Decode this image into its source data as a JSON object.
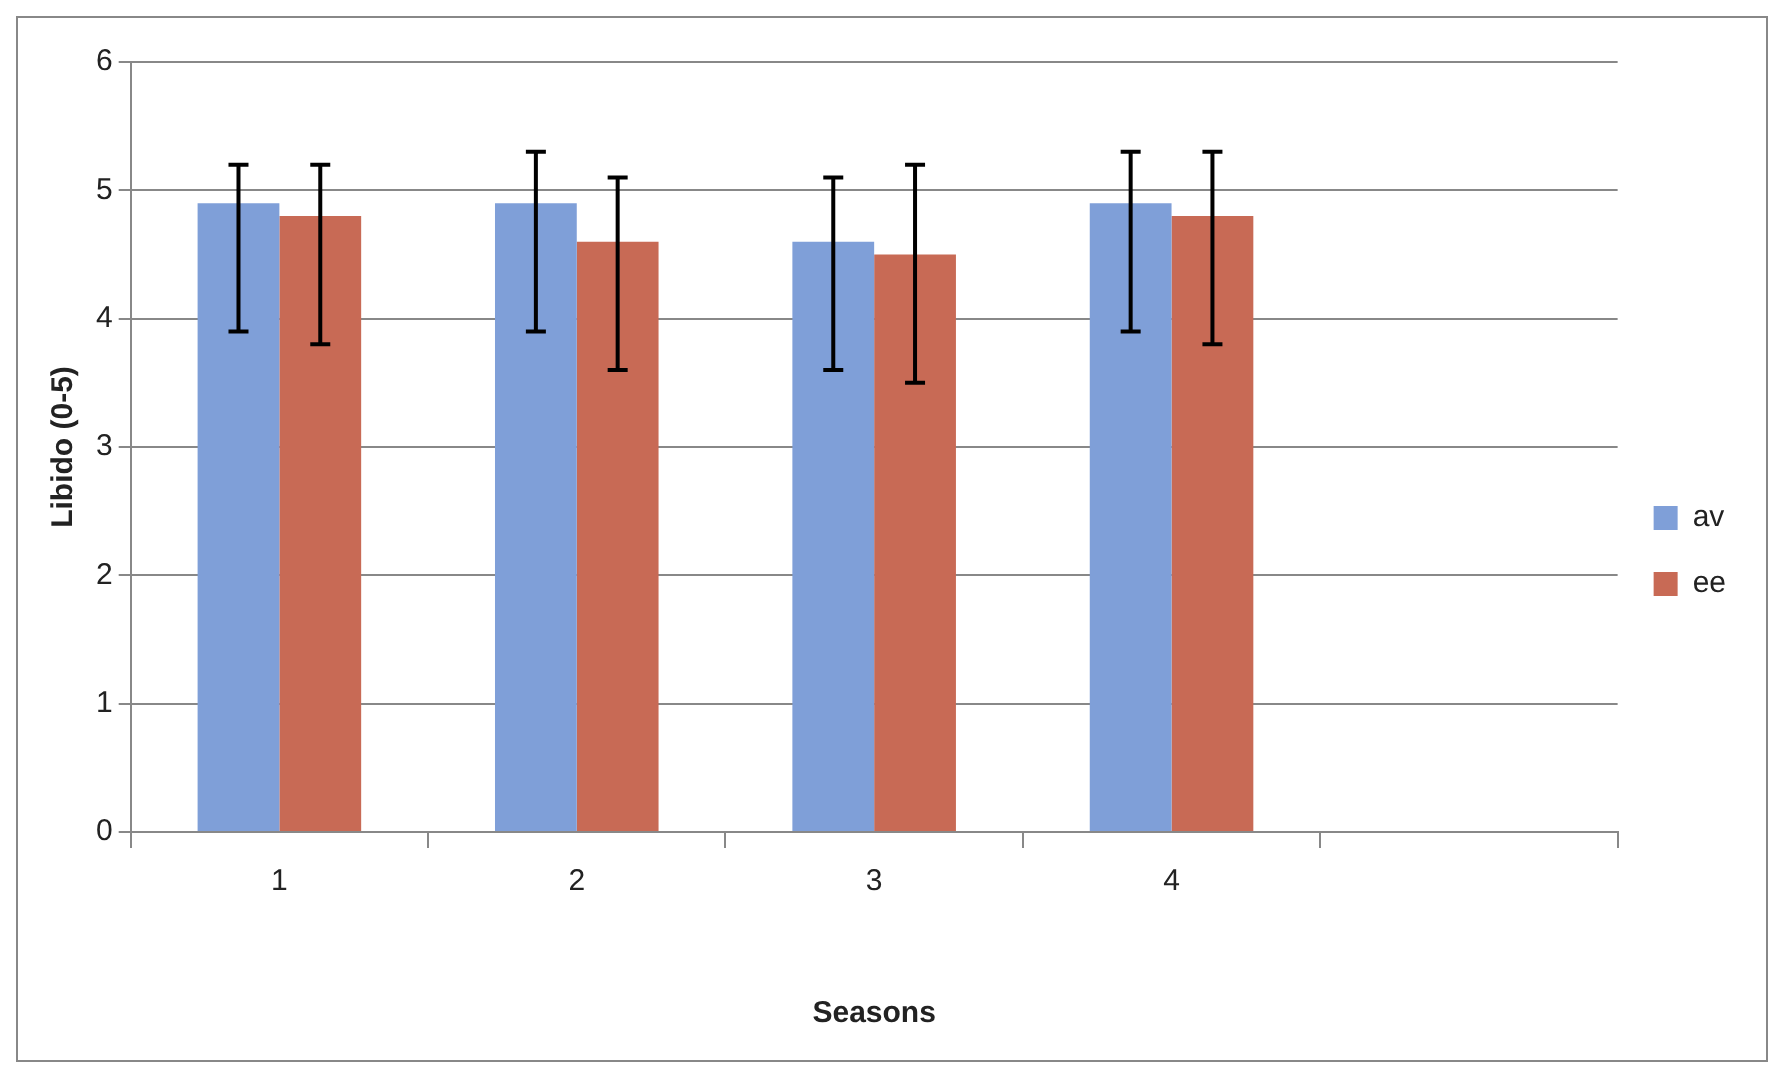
{
  "chart_data": {
    "type": "bar",
    "xlabel": "Seasons",
    "ylabel": "Libido (0-5)",
    "categories": [
      "1",
      "2",
      "3",
      "4",
      null
    ],
    "series": [
      {
        "name": "av",
        "color": "#7f9fd8",
        "values": [
          4.9,
          4.9,
          4.6,
          4.9,
          null
        ],
        "errors": [
          [
            3.9,
            5.2
          ],
          [
            3.9,
            5.3
          ],
          [
            3.6,
            5.1
          ],
          [
            3.9,
            5.3
          ],
          null
        ]
      },
      {
        "name": "ee",
        "color": "#c86a55",
        "values": [
          4.8,
          4.6,
          4.5,
          4.8,
          null
        ],
        "errors": [
          [
            3.8,
            5.2
          ],
          [
            3.6,
            5.1
          ],
          [
            3.5,
            5.2
          ],
          [
            3.8,
            5.3
          ],
          null
        ]
      }
    ],
    "ylim": [
      0,
      6
    ],
    "yticks": [
      0,
      1,
      2,
      3,
      4,
      5,
      6
    ],
    "grid": "y",
    "legend": "right"
  }
}
